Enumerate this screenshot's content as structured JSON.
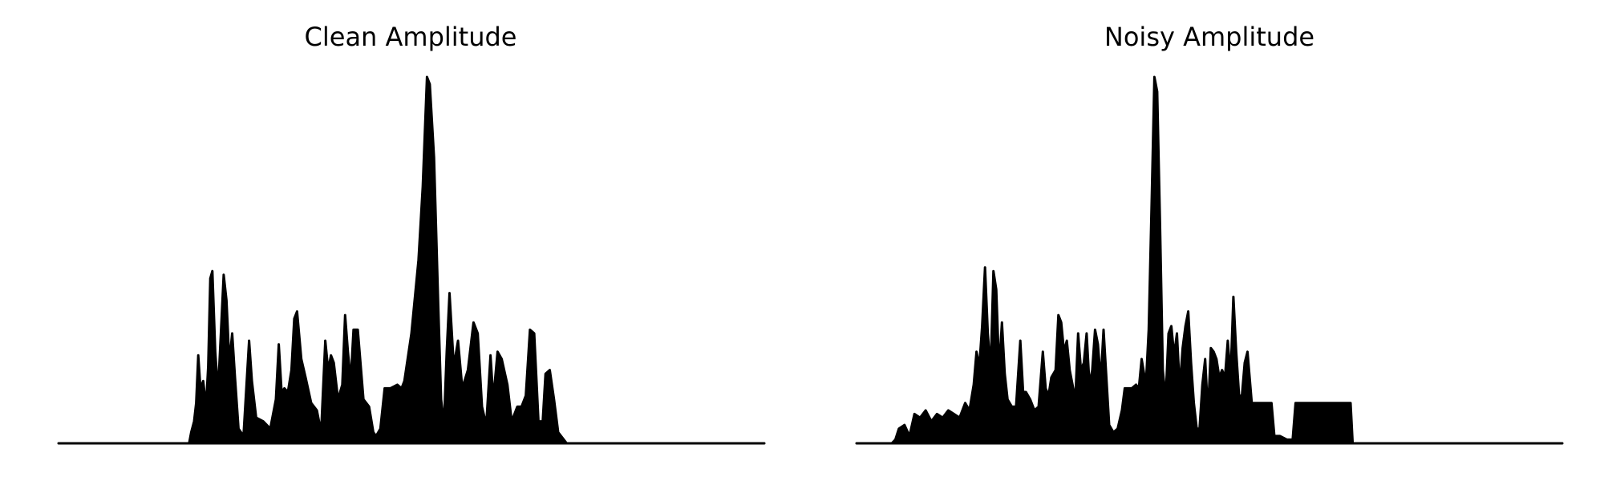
{
  "chart_data": [
    {
      "type": "area",
      "title": "Clean Amplitude",
      "xlabel": "",
      "ylabel": "",
      "axes_visible": false,
      "grid": false,
      "xlim": [
        0,
        1
      ],
      "ylim": [
        0,
        1
      ],
      "color": "#000000",
      "points": [
        [
          0.0,
          0.0
        ],
        [
          0.15,
          0.0
        ],
        [
          0.185,
          0.0
        ],
        [
          0.188,
          0.03
        ],
        [
          0.192,
          0.06
        ],
        [
          0.195,
          0.11
        ],
        [
          0.198,
          0.24
        ],
        [
          0.201,
          0.15
        ],
        [
          0.205,
          0.17
        ],
        [
          0.209,
          0.1
        ],
        [
          0.212,
          0.21
        ],
        [
          0.215,
          0.45
        ],
        [
          0.218,
          0.47
        ],
        [
          0.222,
          0.25
        ],
        [
          0.226,
          0.14
        ],
        [
          0.23,
          0.3
        ],
        [
          0.234,
          0.46
        ],
        [
          0.238,
          0.39
        ],
        [
          0.242,
          0.22
        ],
        [
          0.246,
          0.3
        ],
        [
          0.25,
          0.18
        ],
        [
          0.255,
          0.04
        ],
        [
          0.262,
          0.02
        ],
        [
          0.27,
          0.28
        ],
        [
          0.274,
          0.17
        ],
        [
          0.28,
          0.07
        ],
        [
          0.29,
          0.06
        ],
        [
          0.3,
          0.04
        ],
        [
          0.308,
          0.12
        ],
        [
          0.312,
          0.27
        ],
        [
          0.316,
          0.14
        ],
        [
          0.32,
          0.15
        ],
        [
          0.325,
          0.14
        ],
        [
          0.33,
          0.2
        ],
        [
          0.334,
          0.34
        ],
        [
          0.338,
          0.36
        ],
        [
          0.344,
          0.23
        ],
        [
          0.35,
          0.18
        ],
        [
          0.358,
          0.11
        ],
        [
          0.366,
          0.09
        ],
        [
          0.372,
          0.03
        ],
        [
          0.378,
          0.28
        ],
        [
          0.382,
          0.2
        ],
        [
          0.386,
          0.24
        ],
        [
          0.39,
          0.22
        ],
        [
          0.396,
          0.12
        ],
        [
          0.402,
          0.16
        ],
        [
          0.406,
          0.35
        ],
        [
          0.41,
          0.25
        ],
        [
          0.414,
          0.17
        ],
        [
          0.418,
          0.31
        ],
        [
          0.424,
          0.31
        ],
        [
          0.432,
          0.12
        ],
        [
          0.44,
          0.1
        ],
        [
          0.446,
          0.03
        ],
        [
          0.45,
          0.02
        ],
        [
          0.456,
          0.04
        ],
        [
          0.462,
          0.15
        ],
        [
          0.47,
          0.15
        ],
        [
          0.48,
          0.16
        ],
        [
          0.486,
          0.15
        ],
        [
          0.49,
          0.17
        ],
        [
          0.5,
          0.3
        ],
        [
          0.51,
          0.5
        ],
        [
          0.516,
          0.7
        ],
        [
          0.522,
          1.0
        ],
        [
          0.526,
          0.98
        ],
        [
          0.532,
          0.78
        ],
        [
          0.538,
          0.38
        ],
        [
          0.542,
          0.12
        ],
        [
          0.546,
          0.05
        ],
        [
          0.55,
          0.25
        ],
        [
          0.554,
          0.41
        ],
        [
          0.56,
          0.21
        ],
        [
          0.566,
          0.28
        ],
        [
          0.572,
          0.15
        ],
        [
          0.58,
          0.2
        ],
        [
          0.588,
          0.33
        ],
        [
          0.594,
          0.3
        ],
        [
          0.6,
          0.1
        ],
        [
          0.606,
          0.05
        ],
        [
          0.612,
          0.24
        ],
        [
          0.616,
          0.12
        ],
        [
          0.622,
          0.25
        ],
        [
          0.628,
          0.23
        ],
        [
          0.636,
          0.16
        ],
        [
          0.642,
          0.06
        ],
        [
          0.65,
          0.1
        ],
        [
          0.656,
          0.1
        ],
        [
          0.662,
          0.13
        ],
        [
          0.668,
          0.31
        ],
        [
          0.674,
          0.3
        ],
        [
          0.68,
          0.06
        ],
        [
          0.686,
          0.06
        ],
        [
          0.69,
          0.19
        ],
        [
          0.696,
          0.2
        ],
        [
          0.702,
          0.12
        ],
        [
          0.708,
          0.03
        ],
        [
          0.72,
          0.0
        ],
        [
          1.0,
          0.0
        ]
      ]
    },
    {
      "type": "area",
      "title": "Noisy Amplitude",
      "xlabel": "",
      "ylabel": "",
      "axes_visible": false,
      "grid": false,
      "xlim": [
        0,
        1
      ],
      "ylim": [
        0,
        1
      ],
      "color": "#000000",
      "points": [
        [
          0.0,
          0.0
        ],
        [
          0.05,
          0.0
        ],
        [
          0.055,
          0.01
        ],
        [
          0.06,
          0.04
        ],
        [
          0.068,
          0.05
        ],
        [
          0.075,
          0.02
        ],
        [
          0.082,
          0.08
        ],
        [
          0.09,
          0.07
        ],
        [
          0.098,
          0.09
        ],
        [
          0.106,
          0.06
        ],
        [
          0.114,
          0.08
        ],
        [
          0.122,
          0.07
        ],
        [
          0.13,
          0.09
        ],
        [
          0.138,
          0.08
        ],
        [
          0.146,
          0.07
        ],
        [
          0.154,
          0.11
        ],
        [
          0.16,
          0.09
        ],
        [
          0.166,
          0.16
        ],
        [
          0.17,
          0.25
        ],
        [
          0.174,
          0.21
        ],
        [
          0.178,
          0.32
        ],
        [
          0.182,
          0.48
        ],
        [
          0.186,
          0.3
        ],
        [
          0.19,
          0.2
        ],
        [
          0.194,
          0.47
        ],
        [
          0.198,
          0.42
        ],
        [
          0.202,
          0.2
        ],
        [
          0.206,
          0.33
        ],
        [
          0.21,
          0.19
        ],
        [
          0.214,
          0.12
        ],
        [
          0.22,
          0.1
        ],
        [
          0.226,
          0.1
        ],
        [
          0.232,
          0.28
        ],
        [
          0.236,
          0.14
        ],
        [
          0.24,
          0.14
        ],
        [
          0.246,
          0.12
        ],
        [
          0.252,
          0.09
        ],
        [
          0.258,
          0.1
        ],
        [
          0.264,
          0.25
        ],
        [
          0.268,
          0.15
        ],
        [
          0.272,
          0.13
        ],
        [
          0.276,
          0.18
        ],
        [
          0.282,
          0.2
        ],
        [
          0.286,
          0.35
        ],
        [
          0.29,
          0.33
        ],
        [
          0.294,
          0.25
        ],
        [
          0.298,
          0.28
        ],
        [
          0.302,
          0.2
        ],
        [
          0.306,
          0.16
        ],
        [
          0.31,
          0.12
        ],
        [
          0.314,
          0.3
        ],
        [
          0.318,
          0.2
        ],
        [
          0.322,
          0.22
        ],
        [
          0.326,
          0.3
        ],
        [
          0.33,
          0.16
        ],
        [
          0.334,
          0.2
        ],
        [
          0.338,
          0.31
        ],
        [
          0.342,
          0.27
        ],
        [
          0.346,
          0.17
        ],
        [
          0.35,
          0.31
        ],
        [
          0.354,
          0.18
        ],
        [
          0.358,
          0.05
        ],
        [
          0.364,
          0.03
        ],
        [
          0.37,
          0.04
        ],
        [
          0.376,
          0.09
        ],
        [
          0.38,
          0.15
        ],
        [
          0.39,
          0.15
        ],
        [
          0.396,
          0.16
        ],
        [
          0.4,
          0.15
        ],
        [
          0.404,
          0.23
        ],
        [
          0.41,
          0.16
        ],
        [
          0.414,
          0.31
        ],
        [
          0.418,
          0.64
        ],
        [
          0.422,
          1.0
        ],
        [
          0.426,
          0.96
        ],
        [
          0.43,
          0.6
        ],
        [
          0.434,
          0.2
        ],
        [
          0.438,
          0.12
        ],
        [
          0.442,
          0.3
        ],
        [
          0.446,
          0.32
        ],
        [
          0.45,
          0.24
        ],
        [
          0.454,
          0.3
        ],
        [
          0.458,
          0.15
        ],
        [
          0.462,
          0.26
        ],
        [
          0.466,
          0.32
        ],
        [
          0.47,
          0.36
        ],
        [
          0.474,
          0.22
        ],
        [
          0.478,
          0.11
        ],
        [
          0.482,
          0.04
        ],
        [
          0.486,
          0.04
        ],
        [
          0.49,
          0.16
        ],
        [
          0.494,
          0.23
        ],
        [
          0.498,
          0.08
        ],
        [
          0.502,
          0.26
        ],
        [
          0.506,
          0.25
        ],
        [
          0.51,
          0.23
        ],
        [
          0.514,
          0.18
        ],
        [
          0.518,
          0.2
        ],
        [
          0.522,
          0.18
        ],
        [
          0.526,
          0.28
        ],
        [
          0.53,
          0.18
        ],
        [
          0.534,
          0.4
        ],
        [
          0.538,
          0.25
        ],
        [
          0.542,
          0.13
        ],
        [
          0.546,
          0.13
        ],
        [
          0.55,
          0.22
        ],
        [
          0.554,
          0.25
        ],
        [
          0.56,
          0.11
        ],
        [
          0.57,
          0.11
        ],
        [
          0.58,
          0.11
        ],
        [
          0.588,
          0.11
        ],
        [
          0.592,
          0.02
        ],
        [
          0.6,
          0.02
        ],
        [
          0.61,
          0.01
        ],
        [
          0.618,
          0.01
        ],
        [
          0.622,
          0.11
        ],
        [
          0.64,
          0.11
        ],
        [
          0.66,
          0.11
        ],
        [
          0.68,
          0.11
        ],
        [
          0.7,
          0.11
        ],
        [
          0.703,
          0.0
        ],
        [
          1.0,
          0.0
        ]
      ]
    }
  ]
}
